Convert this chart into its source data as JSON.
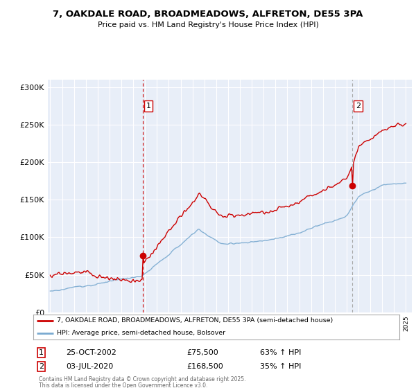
{
  "title": "7, OAKDALE ROAD, BROADMEADOWS, ALFRETON, DE55 3PA",
  "subtitle": "Price paid vs. HM Land Registry's House Price Index (HPI)",
  "background_color": "#ffffff",
  "plot_background": "#e8eef8",
  "grid_color": "#ffffff",
  "ylim": [
    0,
    310000
  ],
  "yticks": [
    0,
    50000,
    100000,
    150000,
    200000,
    250000,
    300000
  ],
  "ytick_labels": [
    "£0",
    "£50K",
    "£100K",
    "£150K",
    "£200K",
    "£250K",
    "£300K"
  ],
  "x_start_year": 1995,
  "x_end_year": 2025,
  "sale1_date": 2002.82,
  "sale1_price": 75500,
  "sale1_label": "1",
  "sale2_date": 2020.5,
  "sale2_price": 168500,
  "sale2_label": "2",
  "sale1_vline_color": "#cc0000",
  "sale2_vline_color": "#aaaaaa",
  "hpi_line_color": "#7aaad0",
  "price_line_color": "#cc0000",
  "legend_label1": "7, OAKDALE ROAD, BROADMEADOWS, ALFRETON, DE55 3PA (semi-detached house)",
  "legend_label2": "HPI: Average price, semi-detached house, Bolsover",
  "footer1": "Contains HM Land Registry data © Crown copyright and database right 2025.",
  "footer2": "This data is licensed under the Open Government Licence v3.0.",
  "annotation1_date": "25-OCT-2002",
  "annotation1_price": "£75,500",
  "annotation1_hpi": "63% ↑ HPI",
  "annotation2_date": "03-JUL-2020",
  "annotation2_price": "£168,500",
  "annotation2_hpi": "35% ↑ HPI"
}
